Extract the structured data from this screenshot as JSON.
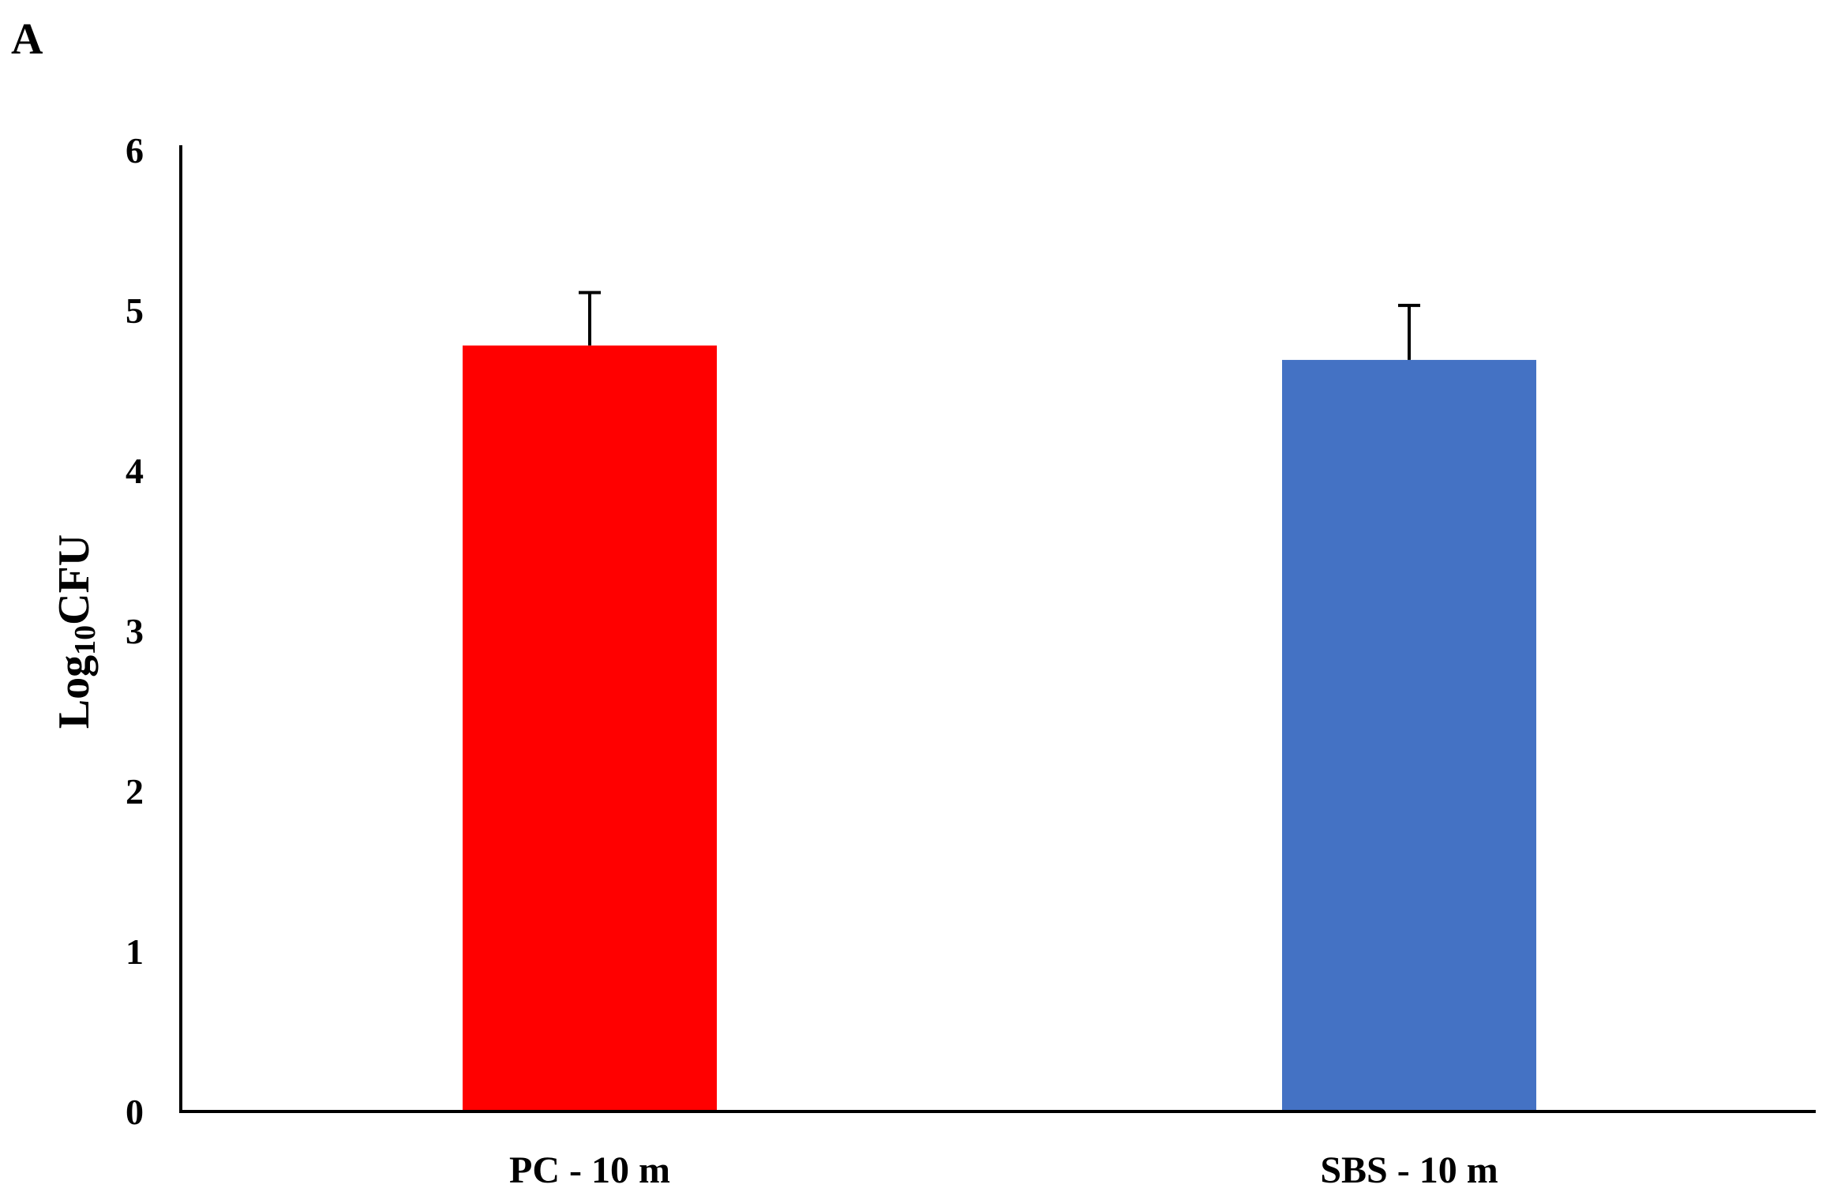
{
  "panel_label": "A",
  "chart_data": {
    "type": "bar",
    "title": "",
    "xlabel": "",
    "ylabel_main": "Log",
    "ylabel_sub": "10",
    "ylabel_tail": "CFU",
    "ylim": [
      0,
      6
    ],
    "yticks": [
      "0",
      "1",
      "2",
      "3",
      "4",
      "5",
      "6"
    ],
    "grid": false,
    "legend": "none",
    "categories": [
      "PC - 10 m",
      "SBS - 10 m"
    ],
    "values": [
      4.78,
      4.69
    ],
    "errors": [
      0.33,
      0.34
    ],
    "colors": [
      "#ff0000",
      "#4472c4"
    ]
  }
}
